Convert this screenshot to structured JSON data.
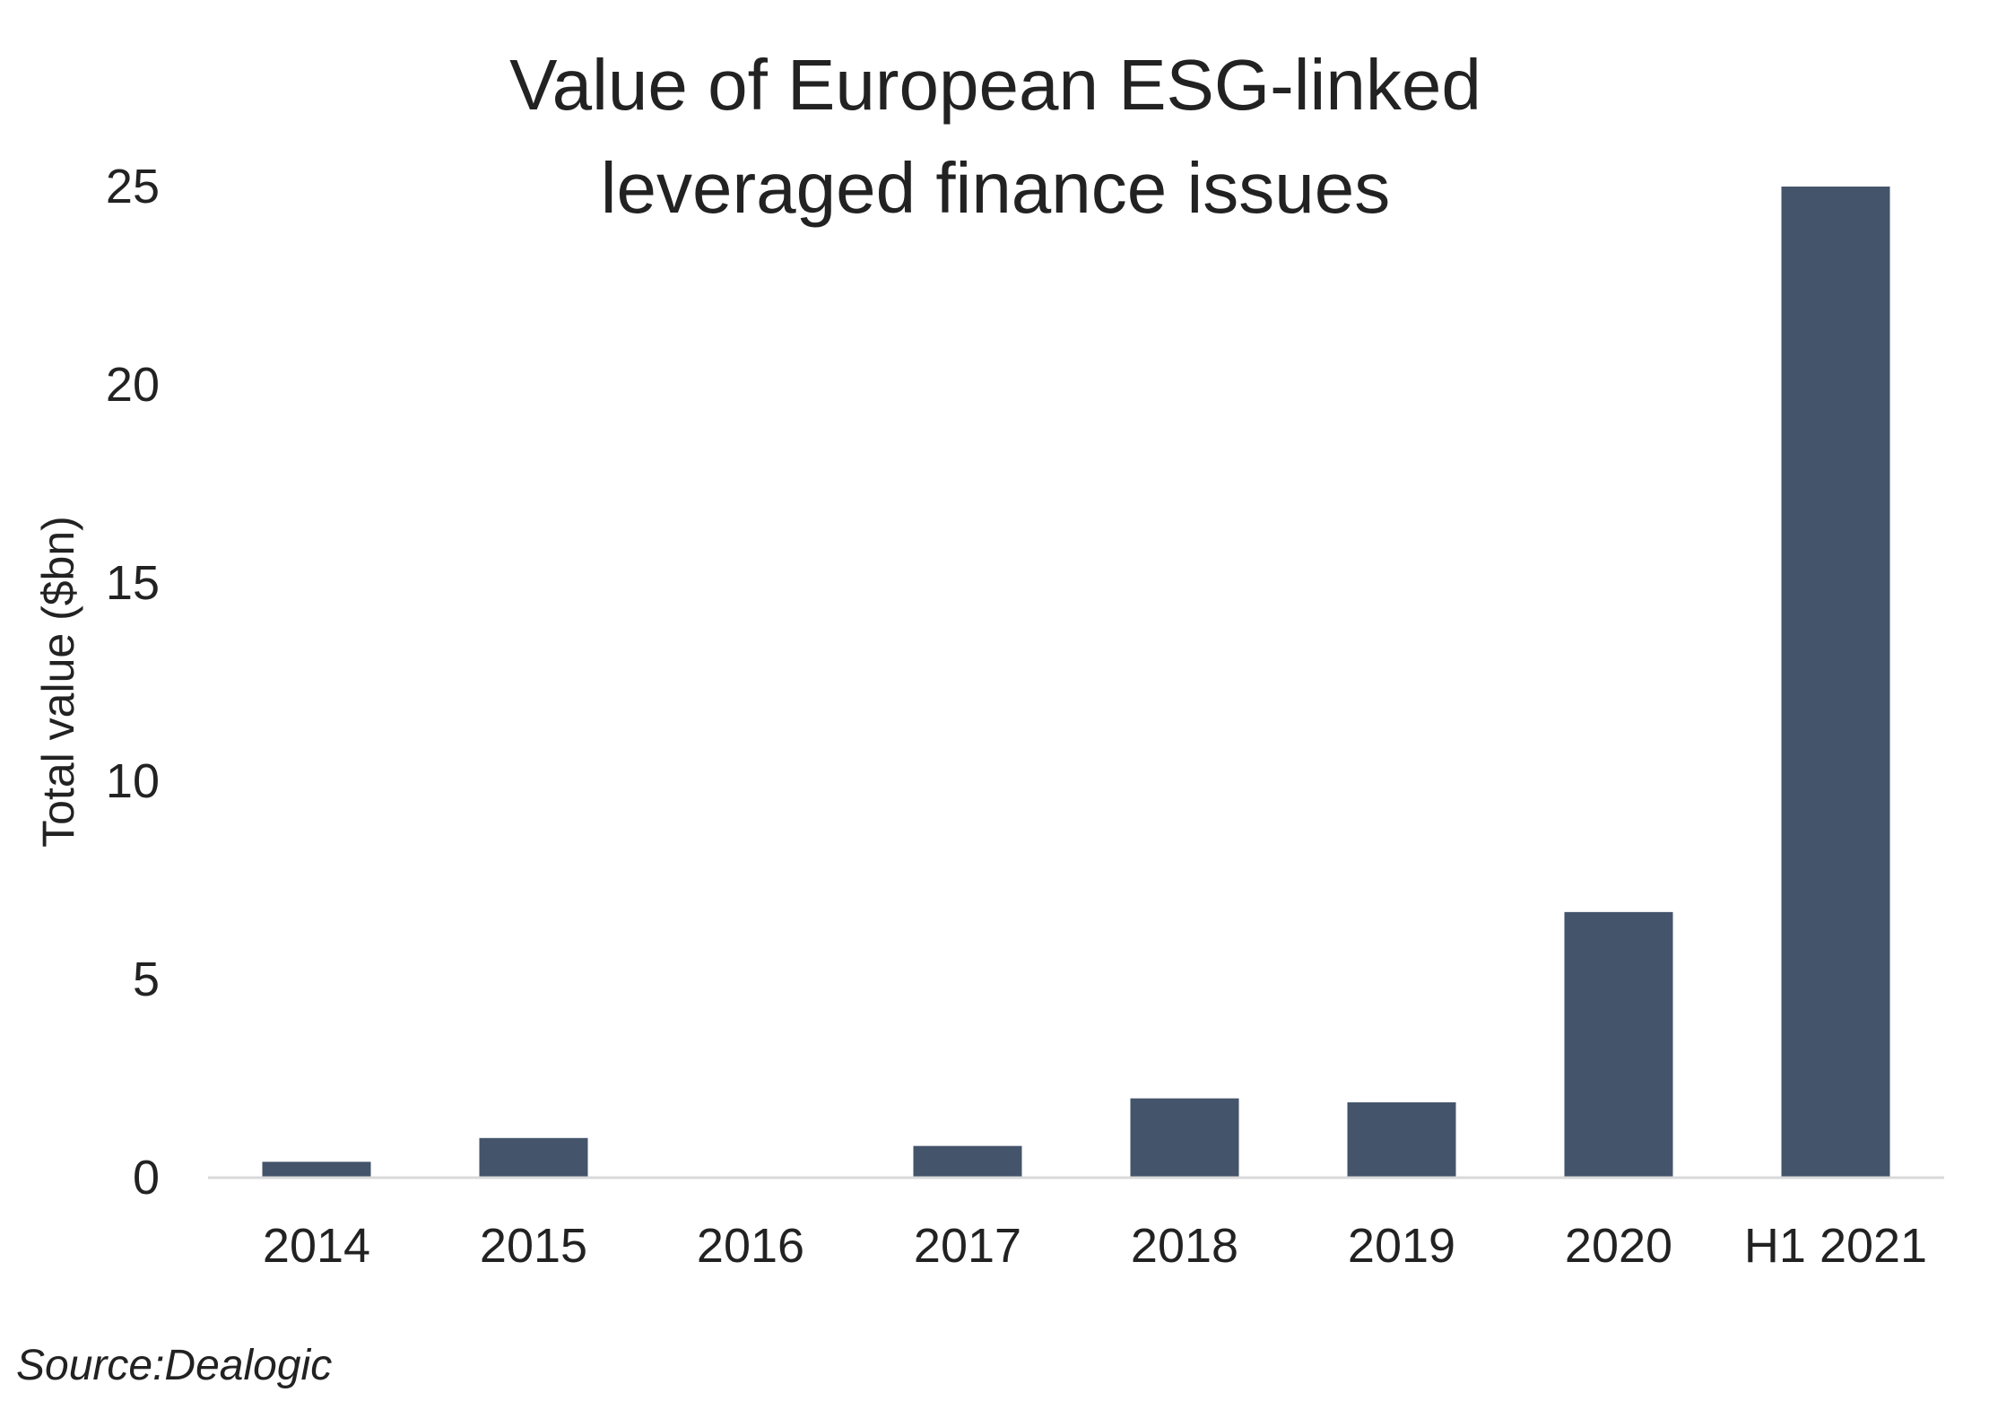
{
  "chart_data": {
    "type": "bar",
    "title_lines": [
      "Value of European ESG-linked",
      "leveraged finance issues"
    ],
    "ylabel": "Total value ($bn)",
    "xlabel": "",
    "categories": [
      "2014",
      "2015",
      "2016",
      "2017",
      "2018",
      "2019",
      "2020",
      "H1 2021"
    ],
    "values": [
      0.4,
      1.0,
      0.0,
      0.8,
      2.0,
      1.9,
      6.7,
      25.0
    ],
    "ylim": [
      0,
      25
    ],
    "yticks": [
      "0",
      "5",
      "10",
      "15",
      "20",
      "25"
    ],
    "grid": false,
    "legend": "none",
    "bar_color": "#44546a",
    "baseline_color": "#d9d9d9"
  },
  "source": "Source:Dealogic"
}
